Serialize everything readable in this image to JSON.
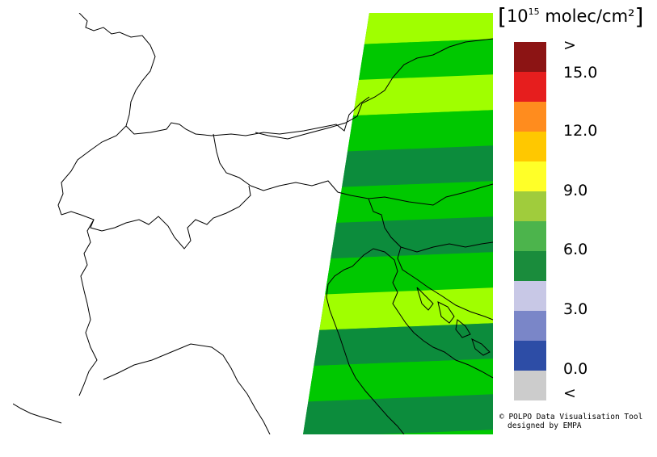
{
  "legend": {
    "unit_open": "[",
    "unit_base": "10",
    "unit_exp": "15",
    "unit_text": " molec/cm²",
    "unit_close": "]",
    "colors": [
      "#cccccc",
      "#2d4da6",
      "#7a86c8",
      "#c8c8e6",
      "#1a8c3c",
      "#4cb44c",
      "#a0cc3c",
      "#ffff28",
      "#ffc800",
      "#ff8c1e",
      "#e61e1e",
      "#8c1414"
    ],
    "ticks": [
      ">",
      "15.0",
      "12.0",
      "9.0",
      "6.0",
      "3.0",
      "0.0",
      "<"
    ]
  },
  "credit": {
    "line1": "© POLPO Data Visualisation Tool",
    "line2": "designed by EMPA"
  },
  "map": {
    "swath_stripe_colors": [
      "#a0ff00",
      "#00c800",
      "#a0ff00",
      "#00c800",
      "#0c8c3c",
      "#00c800",
      "#0c8c3c",
      "#00c800",
      "#a0ff00",
      "#0c8c3c",
      "#00c800",
      "#0c8c3c"
    ]
  }
}
